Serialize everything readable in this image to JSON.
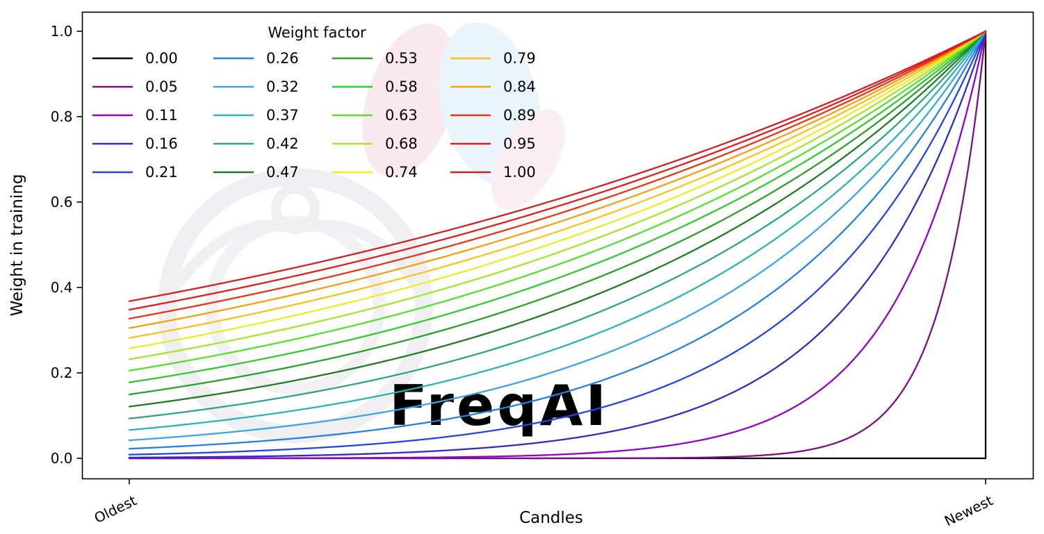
{
  "watermark": {
    "text": "FreqAI"
  },
  "chart_data": {
    "type": "line",
    "title": "",
    "xlabel": "Candles",
    "ylabel": "Weight in training",
    "xticks": [
      "Oldest",
      "Newest"
    ],
    "yticks": [
      "0.0",
      "0.2",
      "0.4",
      "0.6",
      "0.8",
      "1.0"
    ],
    "ylim": [
      0,
      1
    ],
    "grid": false,
    "legend": {
      "title": "Weight factor",
      "position": "upper left",
      "columns": 4,
      "rows": 5
    },
    "formula": "weight(x) = exp((x - 1) / factor) for x in [0,1]; factor 0.00 gives weight 0 everywhere except 1 at the newest candle",
    "series": [
      {
        "name": "0.00",
        "factor": 0,
        "color": "#000000",
        "y_at_oldest": 0.0
      },
      {
        "name": "0.05",
        "factor": 0.0526,
        "color": "#7d0d86",
        "y_at_oldest": 0.0
      },
      {
        "name": "0.11",
        "factor": 0.1053,
        "color": "#9400d3",
        "y_at_oldest": 0.0001
      },
      {
        "name": "0.16",
        "factor": 0.1579,
        "color": "#2c2cc8",
        "y_at_oldest": 0.0018
      },
      {
        "name": "0.21",
        "factor": 0.2105,
        "color": "#2442ee",
        "y_at_oldest": 0.0087
      },
      {
        "name": "0.26",
        "factor": 0.2632,
        "color": "#2380e4",
        "y_at_oldest": 0.0224
      },
      {
        "name": "0.32",
        "factor": 0.3158,
        "color": "#38a5e8",
        "y_at_oldest": 0.0421
      },
      {
        "name": "0.37",
        "factor": 0.3684,
        "color": "#27b5b5",
        "y_at_oldest": 0.0662
      },
      {
        "name": "0.42",
        "factor": 0.4211,
        "color": "#2aa87d",
        "y_at_oldest": 0.0931
      },
      {
        "name": "0.47",
        "factor": 0.4737,
        "color": "#1e7d1e",
        "y_at_oldest": 0.121
      },
      {
        "name": "0.53",
        "factor": 0.5263,
        "color": "#28a228",
        "y_at_oldest": 0.1496
      },
      {
        "name": "0.58",
        "factor": 0.5789,
        "color": "#2ecc2e",
        "y_at_oldest": 0.1778
      },
      {
        "name": "0.63",
        "factor": 0.6316,
        "color": "#52e22b",
        "y_at_oldest": 0.2053
      },
      {
        "name": "0.68",
        "factor": 0.6842,
        "color": "#a2e827",
        "y_at_oldest": 0.2318
      },
      {
        "name": "0.74",
        "factor": 0.7368,
        "color": "#eded1f",
        "y_at_oldest": 0.2573
      },
      {
        "name": "0.79",
        "factor": 0.7895,
        "color": "#f9c414",
        "y_at_oldest": 0.2817
      },
      {
        "name": "0.84",
        "factor": 0.8421,
        "color": "#f89f0e",
        "y_at_oldest": 0.305
      },
      {
        "name": "0.89",
        "factor": 0.8947,
        "color": "#ee3311",
        "y_at_oldest": 0.3269
      },
      {
        "name": "0.95",
        "factor": 0.9474,
        "color": "#e81a1a",
        "y_at_oldest": 0.348
      },
      {
        "name": "1.00",
        "factor": 1,
        "color": "#d41f1f",
        "y_at_oldest": 0.3679
      }
    ]
  }
}
